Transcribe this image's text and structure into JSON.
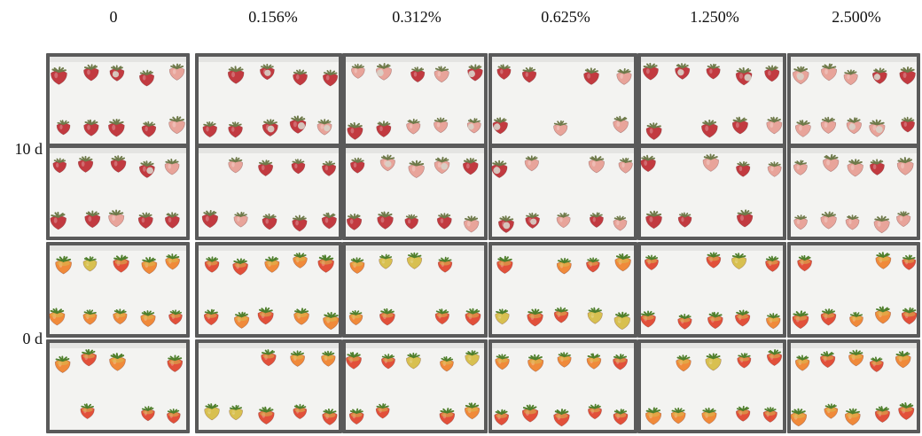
{
  "concentration_labels": [
    "0",
    "0.156%",
    "0.312%",
    "0.625%",
    "1.250%",
    "2.500%"
  ],
  "storage_day_labels": [
    "10 d",
    "0 d"
  ],
  "colors": {
    "background": "#ffffff",
    "box_outer": "#5a5a5a",
    "box_inner": "#f3f3f1",
    "fresh_red": "#e2503a",
    "fresh_orange": "#f08a3a",
    "fresh_yellow": "#d8c050",
    "stored_red": "#c23a40",
    "stored_pale": "#e8a49a",
    "calyx_fresh": "#4f7f2c",
    "calyx_dry": "#6f7a4a",
    "mold": "#d8d2c8"
  }
}
